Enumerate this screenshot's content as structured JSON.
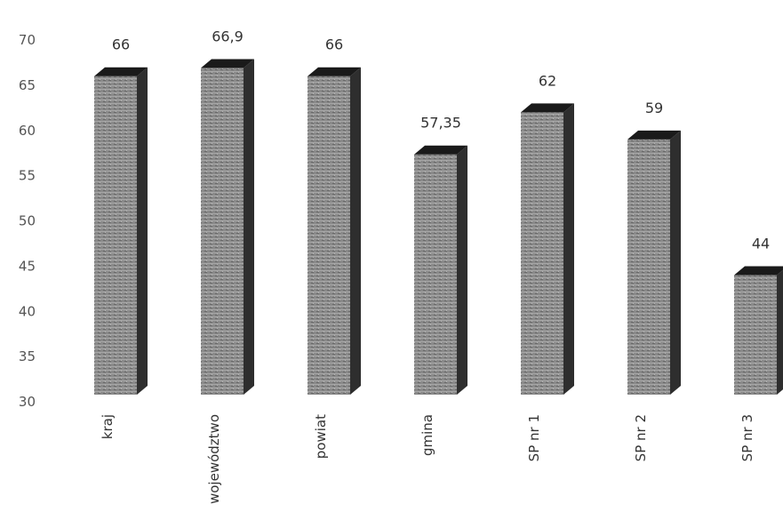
{
  "chart_data": {
    "type": "bar",
    "title": "",
    "xlabel": "",
    "ylabel": "",
    "categories": [
      "kraj",
      "województwo",
      "powiat",
      "gmina",
      "SP nr 1",
      "SP nr 2",
      "SP nr 3"
    ],
    "values": [
      66,
      66.9,
      66,
      57.35,
      62,
      59,
      44
    ],
    "value_labels": [
      "66",
      "66,9",
      "66",
      "57,35",
      "62",
      "59",
      "44"
    ],
    "ylim": [
      30,
      70
    ],
    "yticks": [
      30,
      35,
      40,
      45,
      50,
      55,
      60,
      65,
      70
    ],
    "grid": false,
    "legend": "none",
    "style": "3d-column",
    "colors": {
      "front": "#8c8c8c",
      "side": "#2e2e2e",
      "top": "#1a1a1a"
    }
  }
}
